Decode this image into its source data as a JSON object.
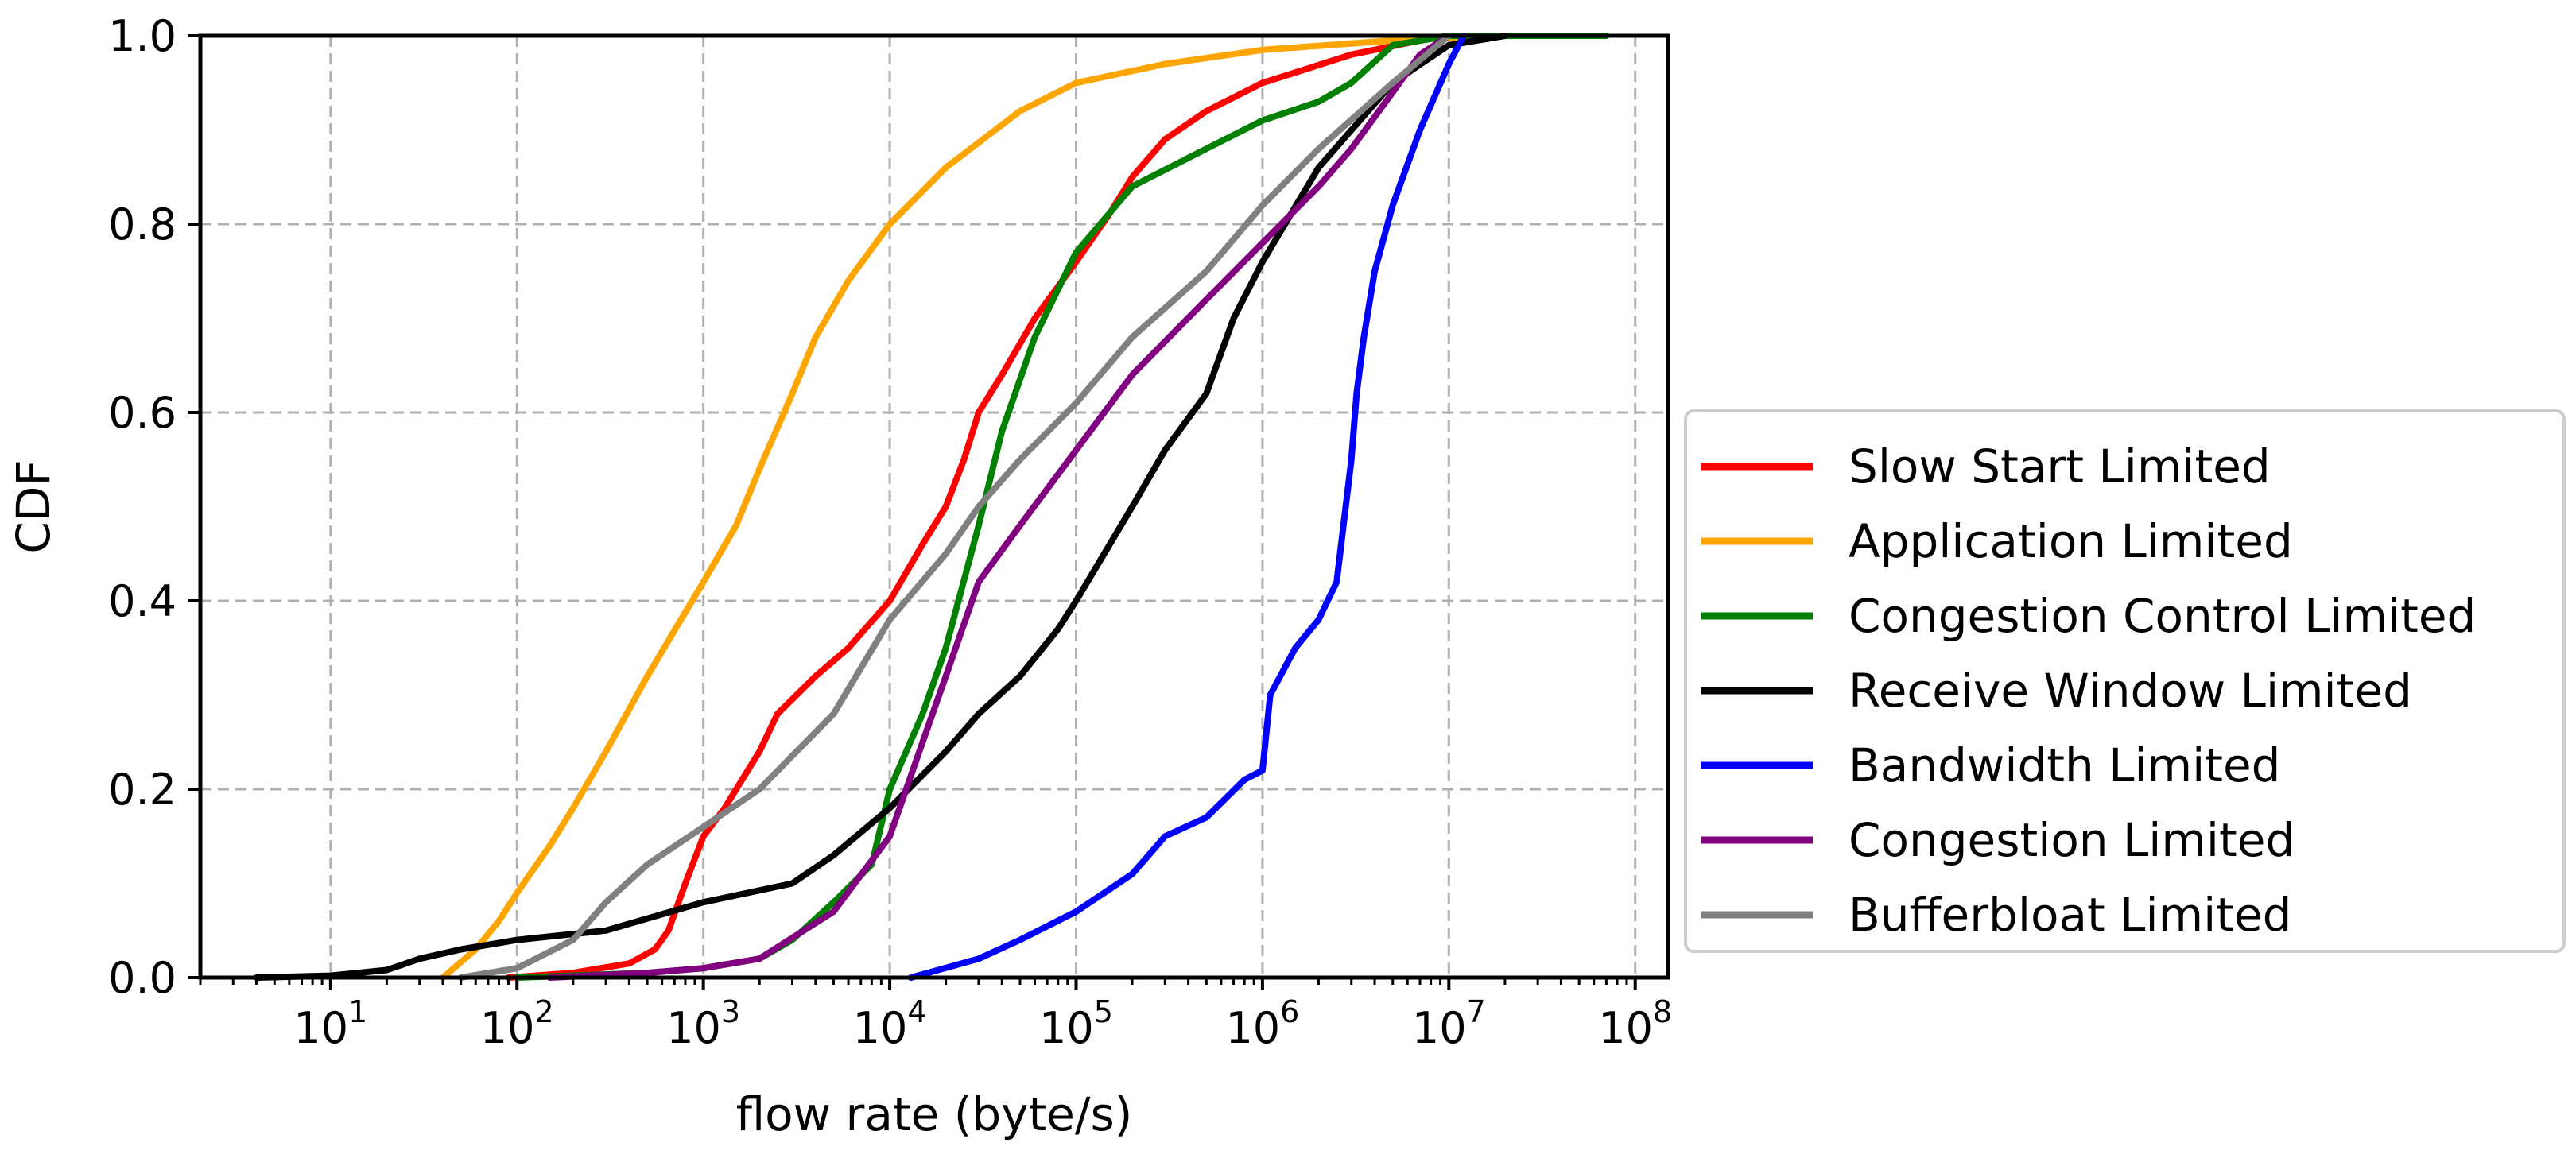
{
  "chart_data": {
    "type": "line",
    "title": "",
    "xlabel": "flow rate (byte/s)",
    "ylabel": "CDF",
    "xscale": "log",
    "xlim": [
      2,
      150000000
    ],
    "ylim": [
      0,
      1
    ],
    "grid": true,
    "legend_position": "right",
    "x_tick_labels": [
      {
        "value": 10,
        "base": "10",
        "exp": "1"
      },
      {
        "value": 100,
        "base": "10",
        "exp": "2"
      },
      {
        "value": 1000,
        "base": "10",
        "exp": "3"
      },
      {
        "value": 10000,
        "base": "10",
        "exp": "4"
      },
      {
        "value": 100000,
        "base": "10",
        "exp": "5"
      },
      {
        "value": 1000000,
        "base": "10",
        "exp": "6"
      },
      {
        "value": 10000000,
        "base": "10",
        "exp": "7"
      },
      {
        "value": 100000000,
        "base": "10",
        "exp": "8"
      }
    ],
    "y_tick_labels": [
      {
        "value": 0.0,
        "label": "0.0"
      },
      {
        "value": 0.2,
        "label": "0.2"
      },
      {
        "value": 0.4,
        "label": "0.4"
      },
      {
        "value": 0.6,
        "label": "0.6"
      },
      {
        "value": 0.8,
        "label": "0.8"
      },
      {
        "value": 1.0,
        "label": "1.0"
      }
    ],
    "series": [
      {
        "name": "Slow Start Limited",
        "color": "#ff0000",
        "x": [
          90,
          200,
          400,
          550,
          650,
          800,
          1000,
          1300,
          2000,
          2500,
          4000,
          6000,
          10000,
          15000,
          20000,
          25000,
          30000,
          40000,
          60000,
          100000,
          150000,
          200000,
          300000,
          500000,
          1000000,
          3000000,
          7000000,
          10000000
        ],
        "y": [
          0.0,
          0.005,
          0.015,
          0.03,
          0.05,
          0.1,
          0.15,
          0.18,
          0.24,
          0.28,
          0.32,
          0.35,
          0.4,
          0.46,
          0.5,
          0.55,
          0.6,
          0.64,
          0.7,
          0.76,
          0.81,
          0.85,
          0.89,
          0.92,
          0.95,
          0.98,
          0.995,
          1.0
        ]
      },
      {
        "name": "Application Limited",
        "color": "#ffa500",
        "x": [
          40,
          60,
          80,
          100,
          150,
          200,
          300,
          500,
          1000,
          1500,
          2000,
          3000,
          4000,
          6000,
          10000,
          20000,
          50000,
          100000,
          300000,
          1000000,
          5000000,
          20000000
        ],
        "y": [
          0.0,
          0.03,
          0.06,
          0.09,
          0.14,
          0.18,
          0.24,
          0.32,
          0.42,
          0.48,
          0.54,
          0.62,
          0.68,
          0.74,
          0.8,
          0.86,
          0.92,
          0.95,
          0.97,
          0.985,
          0.995,
          1.0
        ]
      },
      {
        "name": "Congestion Control Limited",
        "color": "#008000",
        "x": [
          100,
          500,
          1000,
          2000,
          3000,
          5000,
          8000,
          10000,
          15000,
          20000,
          30000,
          40000,
          60000,
          100000,
          200000,
          500000,
          1000000,
          2000000,
          3000000,
          5000000,
          10000000,
          70000000
        ],
        "y": [
          0.0,
          0.005,
          0.01,
          0.02,
          0.04,
          0.08,
          0.12,
          0.2,
          0.28,
          0.35,
          0.48,
          0.58,
          0.68,
          0.77,
          0.84,
          0.88,
          0.91,
          0.93,
          0.95,
          0.99,
          1.0,
          1.0
        ]
      },
      {
        "name": "Receive Window Limited",
        "color": "#000000",
        "x": [
          4,
          10,
          20,
          30,
          50,
          100,
          300,
          1000,
          3000,
          5000,
          10000,
          20000,
          30000,
          50000,
          80000,
          100000,
          200000,
          300000,
          500000,
          700000,
          1000000,
          2000000,
          5000000,
          10000000,
          20000000
        ],
        "y": [
          0.0,
          0.002,
          0.008,
          0.02,
          0.03,
          0.04,
          0.05,
          0.08,
          0.1,
          0.13,
          0.18,
          0.24,
          0.28,
          0.32,
          0.37,
          0.4,
          0.5,
          0.56,
          0.62,
          0.7,
          0.76,
          0.86,
          0.95,
          0.99,
          1.0
        ]
      },
      {
        "name": "Bandwidth Limited",
        "color": "#0000ff",
        "x": [
          13000,
          30000,
          50000,
          100000,
          200000,
          300000,
          500000,
          800000,
          1000000,
          1100000,
          1500000,
          2000000,
          2500000,
          3000000,
          3200000,
          3500000,
          4000000,
          5000000,
          7000000,
          10000000,
          12000000
        ],
        "y": [
          0.0,
          0.02,
          0.04,
          0.07,
          0.11,
          0.15,
          0.17,
          0.21,
          0.22,
          0.3,
          0.35,
          0.38,
          0.42,
          0.55,
          0.62,
          0.68,
          0.75,
          0.82,
          0.9,
          0.97,
          1.0
        ]
      },
      {
        "name": "Congestion Limited",
        "color": "#800080",
        "x": [
          150,
          500,
          1000,
          2000,
          5000,
          10000,
          15000,
          20000,
          30000,
          50000,
          100000,
          200000,
          500000,
          1000000,
          2000000,
          3000000,
          5000000,
          7000000,
          10000000
        ],
        "y": [
          0.0,
          0.005,
          0.01,
          0.02,
          0.07,
          0.15,
          0.25,
          0.32,
          0.42,
          0.48,
          0.56,
          0.64,
          0.72,
          0.78,
          0.84,
          0.88,
          0.94,
          0.98,
          1.0
        ]
      },
      {
        "name": "Bufferbloat Limited",
        "color": "#808080",
        "x": [
          50,
          100,
          200,
          300,
          500,
          1000,
          2000,
          5000,
          10000,
          20000,
          30000,
          50000,
          100000,
          200000,
          500000,
          1000000,
          2000000,
          5000000,
          10000000
        ],
        "y": [
          0.0,
          0.01,
          0.04,
          0.08,
          0.12,
          0.16,
          0.2,
          0.28,
          0.38,
          0.45,
          0.5,
          0.55,
          0.61,
          0.68,
          0.75,
          0.82,
          0.88,
          0.95,
          1.0
        ]
      }
    ]
  }
}
